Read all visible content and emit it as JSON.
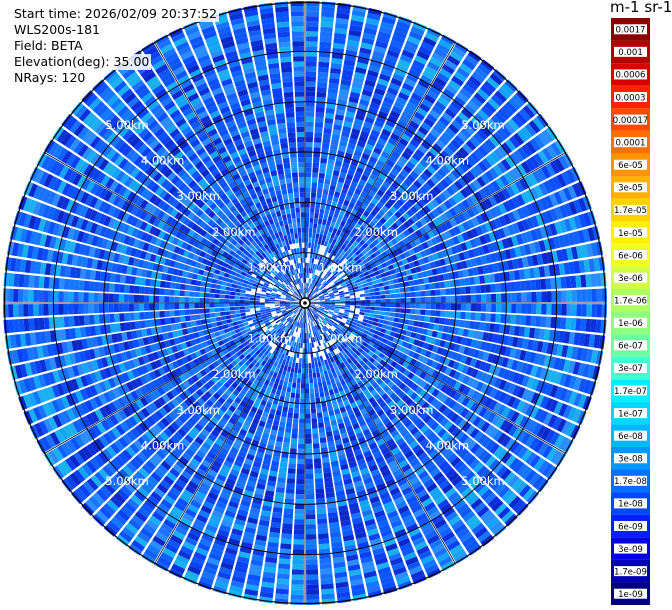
{
  "info": {
    "start_time": "Start time: 2026/02/09 20:37:52",
    "instrument": "WLS200s-181",
    "field": "Field: BETA",
    "elevation": "Elevation(deg): 35.00",
    "nrays": "NRays: 120"
  },
  "colorbar": {
    "title": "m-1 sr-1",
    "levels": [
      "0.0017",
      "0.001",
      "0.0006",
      "0.0003",
      "0.00017",
      "0.0001",
      "6e-05",
      "3e-05",
      "1.7e-05",
      "1e-05",
      "6e-06",
      "3e-06",
      "1.7e-06",
      "1e-06",
      "6e-07",
      "3e-07",
      "1.7e-07",
      "1e-07",
      "6e-08",
      "3e-08",
      "1.7e-08",
      "1e-08",
      "6e-09",
      "3e-09",
      "1.7e-09",
      "1e-09"
    ],
    "colors": [
      "#8b0000",
      "#b30000",
      "#d90000",
      "#ff2000",
      "#ff4a00",
      "#ff6e00",
      "#ff9300",
      "#ffb000",
      "#ffd200",
      "#fff000",
      "#f0ff20",
      "#d2ff40",
      "#b0ff60",
      "#90ff80",
      "#6effa0",
      "#40ffd0",
      "#00f0ff",
      "#00d8ff",
      "#00b8ff",
      "#0098ff",
      "#0070ff",
      "#0048ff",
      "#0020ff",
      "#0000e0",
      "#0000b0",
      "#000080"
    ]
  },
  "chart_data": {
    "type": "heatmap",
    "scan": "PPI",
    "nrays": 120,
    "elevation_deg": 35.0,
    "max_range_km": 6.0,
    "range_ring_labels": [
      "1.00km",
      "2.00km",
      "3.00km",
      "4.00km",
      "5.00km"
    ],
    "value_range": [
      1e-09,
      0.0017
    ],
    "dominant_levels": [
      "6e-08",
      "3e-08",
      "1.7e-08",
      "1e-08"
    ]
  }
}
